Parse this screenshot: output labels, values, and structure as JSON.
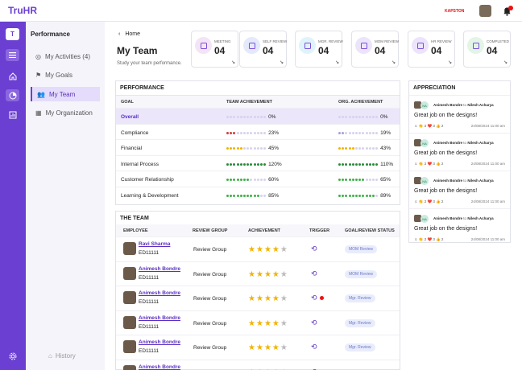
{
  "app": {
    "logo": "TruHR",
    "brand": "KAPSTON",
    "bell_count": "1"
  },
  "rail": {
    "letter": "T"
  },
  "sidebar": {
    "title": "Performance",
    "items": [
      {
        "label": "My Activities (4)",
        "icon": "check-circle-icon"
      },
      {
        "label": "My Goals",
        "icon": "flag-icon"
      },
      {
        "label": "My Team",
        "icon": "team-icon"
      },
      {
        "label": "My Organization",
        "icon": "building-icon"
      }
    ],
    "history": "History"
  },
  "header": {
    "breadcrumb": "Home",
    "title": "My Team",
    "subtitle": "Study your team performance."
  },
  "cards": [
    {
      "label": "MEETING",
      "value": "04",
      "color": "#f3e4f6",
      "icon": "phone-icon"
    },
    {
      "label": "SELF REVIEW",
      "value": "04",
      "color": "#e4e9fb",
      "icon": "self-review-icon"
    },
    {
      "label": "MGR. REVIEW",
      "value": "04",
      "color": "#dff3fb",
      "icon": "mgr-review-icon"
    },
    {
      "label": "MOM REVIEW",
      "value": "04",
      "color": "#ece4fb",
      "icon": "mom-review-icon"
    },
    {
      "label": "HR REVIEW",
      "value": "04",
      "color": "#ece4fb",
      "icon": "hr-review-icon"
    },
    {
      "label": "COMPLETED",
      "value": "04",
      "color": "#e2f5e6",
      "icon": "check-icon"
    }
  ],
  "performance": {
    "title": "PERFORMANCE",
    "columns": [
      "GOAL",
      "TEAM ACHIEVEMENT",
      "ORG. ACHIEVEMENT"
    ],
    "rows": [
      {
        "goal": "Overall",
        "team": "0%",
        "org": "0%",
        "team_pct": 0,
        "org_pct": 0
      },
      {
        "goal": "Compliance",
        "team": "23%",
        "org": "19%",
        "team_pct": 23,
        "org_pct": 19
      },
      {
        "goal": "Financial",
        "team": "45%",
        "org": "43%",
        "team_pct": 45,
        "org_pct": 43
      },
      {
        "goal": "Internal Process",
        "team": "120%",
        "org": "110%",
        "team_pct": 120,
        "org_pct": 110
      },
      {
        "goal": "Customer Relationship",
        "team": "60%",
        "org": "65%",
        "team_pct": 60,
        "org_pct": 65
      },
      {
        "goal": "Learning & Development",
        "team": "85%",
        "org": "89%",
        "team_pct": 85,
        "org_pct": 89
      }
    ]
  },
  "team": {
    "title": "THE TEAM",
    "columns": [
      "EMPLOYEE",
      "REVIEW GROUP",
      "ACHIEVEMENT",
      "TRIGGER",
      "GOAL/REVIEW STATUS"
    ],
    "rows": [
      {
        "name": "Ravi Sharma",
        "id": "ED11111",
        "group": "Review Group",
        "stars": 4,
        "alert": false,
        "status": "MOM Review"
      },
      {
        "name": "Animesh Bondre",
        "id": "ED11111",
        "group": "Review Group",
        "stars": 4,
        "alert": false,
        "status": "MOM Review"
      },
      {
        "name": "Animesh Bondre",
        "id": "ED11111",
        "group": "Review Group",
        "stars": 4,
        "alert": true,
        "status": "Mgr. Review"
      },
      {
        "name": "Animesh Bondre",
        "id": "ED11111",
        "group": "Review Group",
        "stars": 4,
        "alert": false,
        "status": "Mgr. Review"
      },
      {
        "name": "Animesh Bondre",
        "id": "ED11111",
        "group": "Review Group",
        "stars": 4,
        "alert": false,
        "status": "Mgr. Review"
      },
      {
        "name": "Animesh Bondre",
        "id": "",
        "group": "",
        "stars": 4,
        "alert": false,
        "status": ""
      }
    ]
  },
  "appreciation": {
    "title": "APPRECIATION",
    "items": [
      {
        "from": "Animesh Bondre",
        "to_word": "to",
        "to": "Nilesh Acharya",
        "initials": "NA",
        "message": "Great job on the designs!",
        "reactions": "2 ❤️ 3 👍 2",
        "date": "24/08/2024  11:00 am"
      },
      {
        "from": "Animesh Bondre",
        "to_word": "to",
        "to": "Nilesh Acharya",
        "initials": "NA",
        "message": "Great job on the designs!",
        "reactions": "2 ❤️ 3 👍 2",
        "date": "24/08/2024  11:00 am"
      },
      {
        "from": "Animesh Bondre",
        "to_word": "to",
        "to": "Nilesh Acharya",
        "initials": "NA",
        "message": "Great job on the designs!",
        "reactions": "2 ❤️ 3 👍 2",
        "date": "24/08/2024  11:00 am"
      },
      {
        "from": "Animesh Bondre",
        "to_word": "to",
        "to": "Nilesh Acharya",
        "initials": "NA",
        "message": "Great job on the designs!",
        "reactions": "2 ❤️ 3 👍 2",
        "date": "24/08/2024  11:00 am"
      }
    ]
  }
}
